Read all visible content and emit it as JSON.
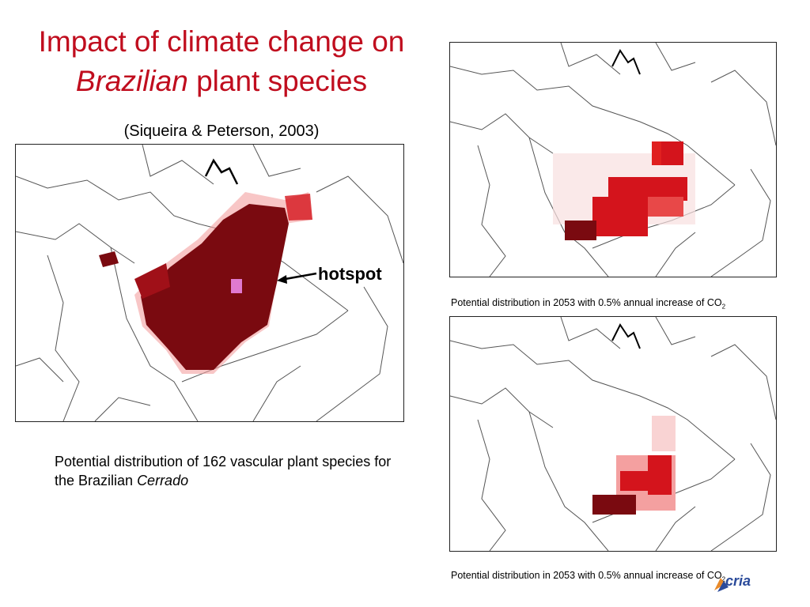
{
  "slide": {
    "title_line1": "Impact of climate change on",
    "title_line2_italic": "Brazilian",
    "title_line2_rest": " plant species",
    "citation": "(Siqueira & Peterson, 2003)",
    "hotspot_label": "hotspot",
    "caption_main_text": "Potential distribution of 162 vascular plant species for the Brazilian ",
    "caption_main_italic": "Cerrado",
    "caption_top_right_text": "Potential distribution in 2053 with 0.5% annual increase of CO",
    "caption_top_right_sub": "2",
    "caption_bottom_right_text": "Potential distribution in 2053 with 0.5% annual increase of CO",
    "caption_bottom_right_sub": "2",
    "logo_text": "cria"
  },
  "colors": {
    "title": "#c00d1e",
    "distribution_dark": "#7a0a10",
    "distribution_red": "#d4141c",
    "distribution_pink": "#f4a0a0",
    "hotspot_marker": "#e07ad0",
    "borders": "#555555"
  },
  "icons": {
    "arrow": "arrow-left-icon",
    "logo": "cria-logo-icon"
  }
}
